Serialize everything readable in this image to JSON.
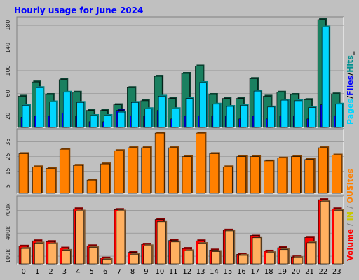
{
  "colors": {
    "background": "#c0c0c0",
    "title": "#0000ff",
    "hits": "#00ffff",
    "hits_shadow": "#007070",
    "files": "#0000ff",
    "files_shadow": "#000070",
    "pages": "#00d6ff",
    "pages_shadow": "#008080",
    "sites": "#ff8000",
    "sites_shadow": "#804000",
    "volume": "#ff0000",
    "volume_shadow": "#800000",
    "in": "#ffff00",
    "out": "#ffb060",
    "out_shadow": "#805830",
    "grid": "#888888"
  },
  "chart_data": {
    "title": "Hourly usage for June 2024",
    "type": "bar",
    "categories": [
      "0",
      "1",
      "2",
      "3",
      "4",
      "5",
      "6",
      "7",
      "8",
      "9",
      "10",
      "11",
      "12",
      "13",
      "14",
      "15",
      "16",
      "17",
      "18",
      "19",
      "20",
      "21",
      "22",
      "23"
    ],
    "panels": [
      {
        "name": "traffic",
        "ylim": [
          0,
          190
        ],
        "yticks": [
          20,
          60,
          100,
          140,
          180
        ],
        "legend_parts": [
          "Pages",
          "/",
          "Files",
          "/",
          "Hits",
          "_"
        ],
        "series": [
          {
            "name": "Hits",
            "values": [
              55,
              80,
              58,
              84,
              62,
              30,
              30,
              40,
              70,
              47,
              90,
              51,
              95,
              108,
              58,
              51,
              51,
              86,
              55,
              62,
              58,
              49,
              190,
              59
            ]
          },
          {
            "name": "Files",
            "values": [
              18,
              20,
              20,
              25,
              20,
              10,
              10,
              30,
              20,
              20,
              30,
              15,
              20,
              20,
              20,
              20,
              15,
              20,
              15,
              20,
              20,
              15,
              40,
              20
            ]
          },
          {
            "name": "Pages",
            "values": [
              39,
              70,
              45,
              62,
              44,
              21,
              21,
              27,
              44,
              33,
              55,
              33,
              51,
              79,
              41,
              37,
              39,
              64,
              36,
              48,
              47,
              35,
              177,
              41
            ]
          }
        ]
      },
      {
        "name": "sites",
        "ylim": [
          0,
          42
        ],
        "yticks": [
          5,
          15,
          25,
          35
        ],
        "legend_parts": [
          "Sites"
        ],
        "series": [
          {
            "name": "Sites",
            "values": [
              27,
              18,
              17,
              30,
              19,
              9,
              20,
              29,
              31,
              31,
              41,
              31,
              25,
              41,
              27,
              18,
              25,
              25,
              22,
              24,
              25,
              23,
              31,
              26
            ]
          }
        ]
      },
      {
        "name": "volume",
        "ylim": [
          0,
          850000
        ],
        "yticks": [
          100000,
          400000,
          700000
        ],
        "ytick_labels": [
          "100k",
          "400k",
          "700k"
        ],
        "legend_parts": [
          "Volume",
          " / ",
          "IN",
          " / ",
          "OUT"
        ],
        "series": [
          {
            "name": "Volume",
            "values": [
              230000,
              300000,
              290000,
              205000,
              720000,
              235000,
              75000,
              710000,
              150000,
              255000,
              580000,
              305000,
              200000,
              300000,
              180000,
              440000,
              125000,
              370000,
              165000,
              210000,
              90000,
              345000,
              840000,
              720000
            ]
          },
          {
            "name": "OUT",
            "values": [
              200000,
              270000,
              260000,
              175000,
              690000,
              215000,
              60000,
              690000,
              125000,
              235000,
              550000,
              285000,
              170000,
              265000,
              160000,
              430000,
              110000,
              340000,
              145000,
              185000,
              80000,
              275000,
              820000,
              700000
            ]
          }
        ]
      }
    ]
  }
}
